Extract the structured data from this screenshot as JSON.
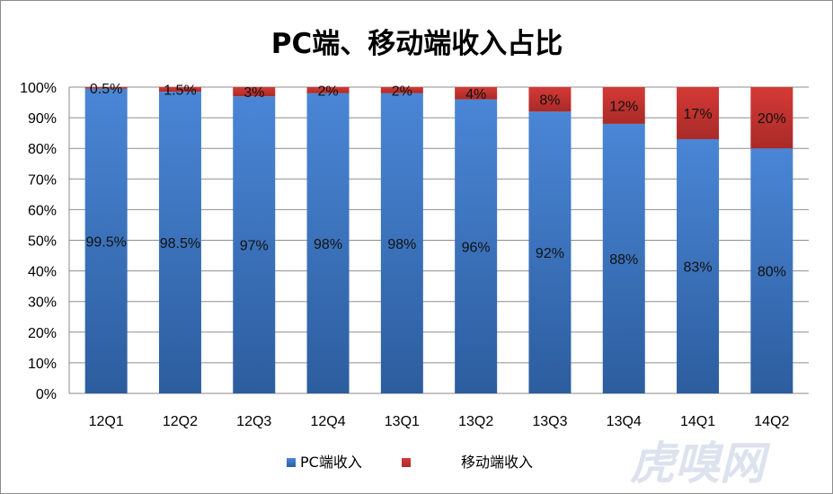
{
  "chart_data": {
    "type": "bar",
    "stacked": true,
    "title": "PC端、移动端收入占比",
    "xlabel": "",
    "ylabel": "",
    "ylim": [
      0,
      100
    ],
    "y_ticks": [
      "0%",
      "10%",
      "20%",
      "30%",
      "40%",
      "50%",
      "60%",
      "70%",
      "80%",
      "90%",
      "100%"
    ],
    "categories": [
      "12Q1",
      "12Q2",
      "12Q3",
      "12Q4",
      "13Q1",
      "13Q2",
      "13Q3",
      "13Q4",
      "14Q1",
      "14Q2"
    ],
    "series": [
      {
        "name": "PC端收入",
        "color": "#3a70bd",
        "values": [
          99.5,
          98.5,
          97,
          98,
          98,
          96,
          92,
          88,
          83,
          80
        ],
        "labels": [
          "99.5%",
          "98.5%",
          "97%",
          "98%",
          "98%",
          "96%",
          "92%",
          "88%",
          "83%",
          "80%"
        ]
      },
      {
        "name": "移动端收入",
        "color": "#c0312f",
        "values": [
          0.5,
          1.5,
          3,
          2,
          2,
          4,
          8,
          12,
          17,
          20
        ],
        "labels": [
          "0.5%",
          "1.5%",
          "3%",
          "2%",
          "2%",
          "4%",
          "8%",
          "12%",
          "17%",
          "20%"
        ]
      }
    ],
    "grid": true,
    "legend": "bottom"
  },
  "watermark": "虎嗅网"
}
